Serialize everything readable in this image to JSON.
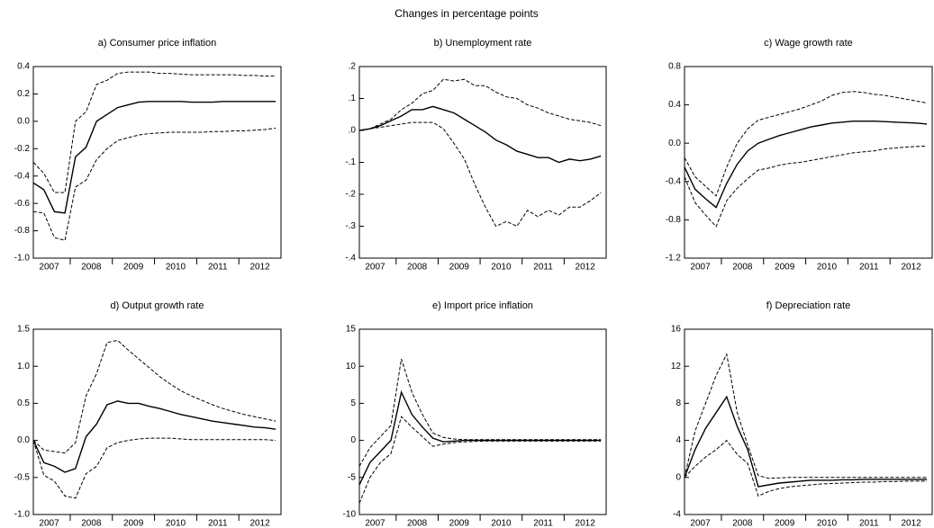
{
  "title": "Changes in percentage points",
  "chart_data": [
    {
      "type": "line",
      "title": "a) Consumer price inflation",
      "categories": [
        null,
        null,
        "2007",
        null,
        null,
        null,
        "2008",
        null,
        null,
        null,
        "2009",
        null,
        null,
        null,
        "2010",
        null,
        null,
        null,
        "2011",
        null,
        null,
        null,
        "2012",
        null
      ],
      "ylim": [
        -1.0,
        0.4
      ],
      "yticks": [
        {
          "value": -1,
          "label": "-1.0"
        },
        -0.8,
        -0.6,
        -0.4,
        -0.2,
        {
          "value": 0,
          "label": "0.0"
        },
        0.2,
        0.4
      ],
      "series": [
        {
          "color": "#000000",
          "dashed": true,
          "values": [
            -0.3,
            -0.38,
            -0.52,
            -0.52,
            0.0,
            0.07,
            0.27,
            0.3,
            0.35,
            0.36,
            0.36,
            0.36,
            0.35,
            0.35,
            0.345,
            0.34,
            0.34,
            0.34,
            0.34,
            0.34,
            0.335,
            0.335,
            0.33,
            0.33
          ]
        },
        {
          "color": "#000000",
          "dashed": false,
          "values": [
            -0.45,
            -0.5,
            -0.66,
            -0.67,
            -0.26,
            -0.19,
            0.0,
            0.05,
            0.1,
            0.12,
            0.14,
            0.145,
            0.145,
            0.145,
            0.145,
            0.14,
            0.14,
            0.14,
            0.145,
            0.145,
            0.145,
            0.145,
            0.145,
            0.145
          ]
        },
        {
          "color": "#000000",
          "dashed": true,
          "values": [
            -0.66,
            -0.67,
            -0.85,
            -0.87,
            -0.48,
            -0.43,
            -0.28,
            -0.2,
            -0.14,
            -0.12,
            -0.1,
            -0.09,
            -0.085,
            -0.08,
            -0.08,
            -0.08,
            -0.08,
            -0.075,
            -0.075,
            -0.07,
            -0.07,
            -0.065,
            -0.06,
            -0.05
          ]
        }
      ]
    },
    {
      "type": "line",
      "title": "b) Unemployment rate",
      "categories": [
        null,
        null,
        "2007",
        null,
        null,
        null,
        "2008",
        null,
        null,
        null,
        "2009",
        null,
        null,
        null,
        "2010",
        null,
        null,
        null,
        "2011",
        null,
        null,
        null,
        "2012",
        null
      ],
      "ylim": [
        -0.4,
        0.2
      ],
      "yticks": [
        {
          "value": -0.4,
          "label": "-.4"
        },
        {
          "value": -0.3,
          "label": "-.3"
        },
        {
          "value": -0.2,
          "label": "-.2"
        },
        {
          "value": -0.1,
          "label": "-.1"
        },
        {
          "value": 0,
          "label": ".0"
        },
        {
          "value": 0.1,
          "label": ".1"
        },
        {
          "value": 0.2,
          "label": ".2"
        }
      ],
      "series": [
        {
          "color": "#000000",
          "dashed": true,
          "values": [
            0,
            0.005,
            0.02,
            0.035,
            0.065,
            0.085,
            0.115,
            0.125,
            0.16,
            0.155,
            0.16,
            0.14,
            0.14,
            0.12,
            0.105,
            0.1,
            0.08,
            0.07,
            0.055,
            0.045,
            0.035,
            0.03,
            0.025,
            0.015
          ]
        },
        {
          "color": "#000000",
          "dashed": false,
          "values": [
            0,
            0.005,
            0.015,
            0.03,
            0.045,
            0.065,
            0.065,
            0.075,
            0.065,
            0.055,
            0.035,
            0.015,
            -0.005,
            -0.03,
            -0.045,
            -0.065,
            -0.075,
            -0.085,
            -0.085,
            -0.1,
            -0.09,
            -0.095,
            -0.09,
            -0.08
          ]
        },
        {
          "color": "#000000",
          "dashed": true,
          "values": [
            0,
            0.005,
            0.01,
            0.015,
            0.02,
            0.025,
            0.025,
            0.025,
            0.005,
            -0.04,
            -0.09,
            -0.17,
            -0.24,
            -0.3,
            -0.285,
            -0.3,
            -0.25,
            -0.27,
            -0.25,
            -0.265,
            -0.24,
            -0.24,
            -0.22,
            -0.195
          ]
        }
      ]
    },
    {
      "type": "line",
      "title": "c) Wage growth rate",
      "categories": [
        null,
        null,
        "2007",
        null,
        null,
        null,
        "2008",
        null,
        null,
        null,
        "2009",
        null,
        null,
        null,
        "2010",
        null,
        null,
        null,
        "2011",
        null,
        null,
        null,
        "2012",
        null
      ],
      "ylim": [
        -1.2,
        0.8
      ],
      "yticks": [
        -1.2,
        -0.8,
        -0.4,
        {
          "value": 0,
          "label": "0.0"
        },
        0.4,
        0.8
      ],
      "series": [
        {
          "color": "#000000",
          "dashed": true,
          "values": [
            -0.15,
            -0.35,
            -0.45,
            -0.55,
            -0.25,
            0.0,
            0.15,
            0.24,
            0.27,
            0.3,
            0.33,
            0.36,
            0.4,
            0.44,
            0.5,
            0.53,
            0.54,
            0.53,
            0.51,
            0.5,
            0.48,
            0.46,
            0.44,
            0.42
          ]
        },
        {
          "color": "#000000",
          "dashed": false,
          "values": [
            -0.25,
            -0.48,
            -0.58,
            -0.67,
            -0.42,
            -0.22,
            -0.08,
            0.0,
            0.04,
            0.08,
            0.11,
            0.14,
            0.17,
            0.19,
            0.21,
            0.22,
            0.23,
            0.23,
            0.23,
            0.225,
            0.22,
            0.215,
            0.21,
            0.2
          ]
        },
        {
          "color": "#000000",
          "dashed": true,
          "values": [
            -0.35,
            -0.62,
            -0.75,
            -0.87,
            -0.6,
            -0.47,
            -0.37,
            -0.28,
            -0.26,
            -0.23,
            -0.21,
            -0.2,
            -0.18,
            -0.16,
            -0.14,
            -0.12,
            -0.1,
            -0.09,
            -0.08,
            -0.06,
            -0.05,
            -0.04,
            -0.035,
            -0.03
          ]
        }
      ]
    },
    {
      "type": "line",
      "title": "d) Output growth rate",
      "categories": [
        null,
        null,
        "2007",
        null,
        null,
        null,
        "2008",
        null,
        null,
        null,
        "2009",
        null,
        null,
        null,
        "2010",
        null,
        null,
        null,
        "2011",
        null,
        null,
        null,
        "2012",
        null
      ],
      "ylim": [
        -1.0,
        1.5
      ],
      "yticks": [
        {
          "value": -1,
          "label": "-1.0"
        },
        -0.5,
        {
          "value": 0,
          "label": "0.0"
        },
        0.5,
        {
          "value": 1,
          "label": "1.0"
        },
        1.5
      ],
      "series": [
        {
          "color": "#000000",
          "dashed": true,
          "values": [
            0,
            -0.13,
            -0.15,
            -0.17,
            -0.03,
            0.6,
            0.9,
            1.32,
            1.35,
            1.22,
            1.1,
            0.98,
            0.86,
            0.76,
            0.67,
            0.6,
            0.54,
            0.48,
            0.43,
            0.39,
            0.35,
            0.32,
            0.29,
            0.26
          ]
        },
        {
          "color": "#000000",
          "dashed": false,
          "values": [
            0,
            -0.3,
            -0.35,
            -0.43,
            -0.38,
            0.05,
            0.22,
            0.48,
            0.53,
            0.5,
            0.5,
            0.46,
            0.43,
            0.39,
            0.35,
            0.32,
            0.29,
            0.26,
            0.24,
            0.22,
            0.2,
            0.18,
            0.17,
            0.15
          ]
        },
        {
          "color": "#000000",
          "dashed": true,
          "values": [
            0,
            -0.47,
            -0.55,
            -0.75,
            -0.78,
            -0.45,
            -0.35,
            -0.1,
            -0.03,
            0.0,
            0.02,
            0.03,
            0.03,
            0.03,
            0.02,
            0.01,
            0.01,
            0.01,
            0.01,
            0.01,
            0.01,
            0.01,
            0.01,
            0.0
          ]
        }
      ]
    },
    {
      "type": "line",
      "title": "e) Import price inflation",
      "categories": [
        null,
        null,
        "2007",
        null,
        null,
        null,
        "2008",
        null,
        null,
        null,
        "2009",
        null,
        null,
        null,
        "2010",
        null,
        null,
        null,
        "2011",
        null,
        null,
        null,
        "2012",
        null
      ],
      "ylim": [
        -10,
        15
      ],
      "yticks": [
        -10,
        -5,
        0,
        5,
        10,
        15
      ],
      "series": [
        {
          "color": "#000000",
          "dashed": true,
          "values": [
            -3.5,
            -1,
            0.5,
            2,
            11,
            6.5,
            3.5,
            1,
            0.4,
            0.2,
            0.1,
            0.1,
            0.1,
            0.1,
            0.1,
            0.1,
            0.1,
            0.1,
            0.1,
            0.1,
            0.1,
            0.1,
            0.1,
            0.1
          ]
        },
        {
          "color": "#000000",
          "dashed": false,
          "values": [
            -6,
            -3,
            -1.5,
            0,
            6.5,
            3.5,
            1.8,
            0.3,
            -0.2,
            -0.1,
            0,
            0,
            0,
            0,
            0,
            0,
            0,
            0,
            0,
            0,
            0,
            0,
            0,
            0
          ]
        },
        {
          "color": "#000000",
          "dashed": true,
          "values": [
            -8.5,
            -5,
            -3,
            -1.8,
            3.2,
            1.8,
            0.5,
            -0.8,
            -0.5,
            -0.3,
            -0.2,
            -0.15,
            -0.1,
            -0.1,
            -0.1,
            -0.1,
            -0.1,
            -0.1,
            -0.1,
            -0.1,
            -0.1,
            -0.1,
            -0.1,
            -0.1
          ]
        }
      ]
    },
    {
      "type": "line",
      "title": "f) Depreciation rate",
      "categories": [
        null,
        null,
        "2007",
        null,
        null,
        null,
        "2008",
        null,
        null,
        null,
        "2009",
        null,
        null,
        null,
        "2010",
        null,
        null,
        null,
        "2011",
        null,
        null,
        null,
        "2012",
        null
      ],
      "ylim": [
        -4,
        16
      ],
      "yticks": [
        -4,
        0,
        4,
        8,
        12,
        16
      ],
      "series": [
        {
          "color": "#000000",
          "dashed": true,
          "values": [
            0,
            5,
            8,
            11,
            13.3,
            7,
            3.5,
            0.2,
            -0.1,
            -0.05,
            0,
            0,
            0,
            0,
            0,
            0,
            0,
            0,
            0,
            0,
            0,
            0,
            0,
            0
          ]
        },
        {
          "color": "#000000",
          "dashed": false,
          "values": [
            0,
            3,
            5.3,
            7,
            8.7,
            5.5,
            3,
            -1,
            -0.8,
            -0.6,
            -0.5,
            -0.4,
            -0.3,
            -0.3,
            -0.3,
            -0.25,
            -0.25,
            -0.2,
            -0.2,
            -0.2,
            -0.2,
            -0.2,
            -0.2,
            -0.2
          ]
        },
        {
          "color": "#000000",
          "dashed": true,
          "values": [
            0,
            1.2,
            2.2,
            3,
            4,
            2.5,
            1.5,
            -2,
            -1.5,
            -1.2,
            -1,
            -0.9,
            -0.8,
            -0.7,
            -0.65,
            -0.6,
            -0.55,
            -0.5,
            -0.5,
            -0.45,
            -0.45,
            -0.4,
            -0.4,
            -0.4
          ]
        }
      ]
    }
  ]
}
